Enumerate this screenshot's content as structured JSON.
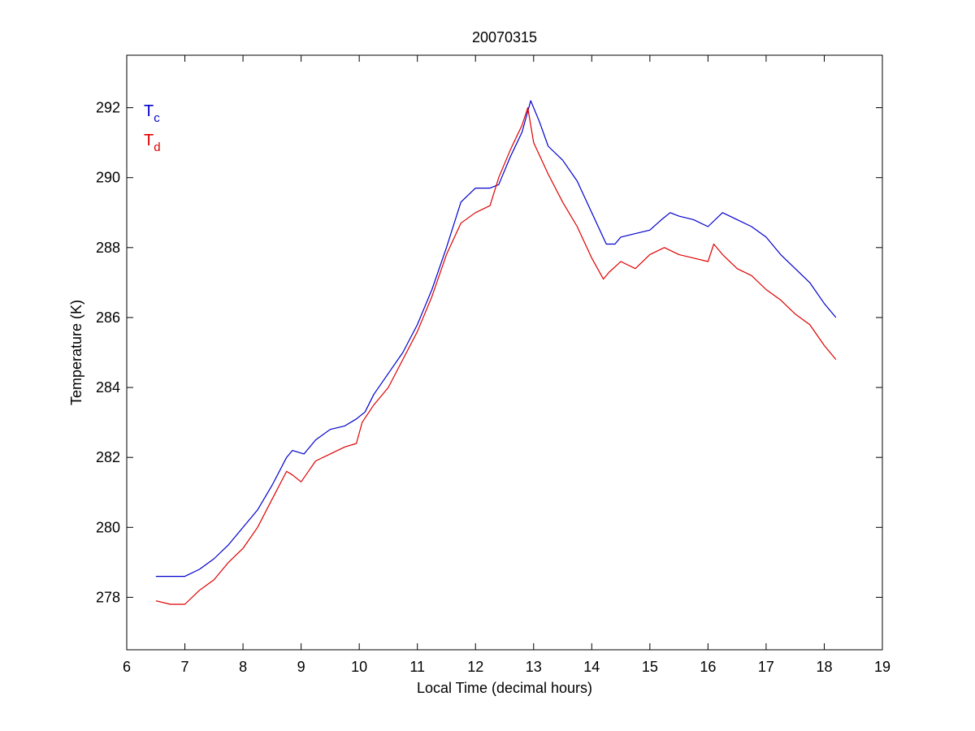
{
  "chart_data": {
    "type": "line",
    "title": "20070315",
    "xlabel": "Local Time (decimal hours)",
    "ylabel": "Temperature (K)",
    "xlim": [
      6,
      19
    ],
    "ylim": [
      276.5,
      293.5
    ],
    "xticks": [
      6,
      7,
      8,
      9,
      10,
      11,
      12,
      13,
      14,
      15,
      16,
      17,
      18,
      19
    ],
    "yticks": [
      278,
      280,
      282,
      284,
      286,
      288,
      290,
      292
    ],
    "grid": false,
    "legend": [
      {
        "main": "T",
        "sub": "c",
        "color": "#0000cc"
      },
      {
        "main": "T",
        "sub": "d",
        "color": "#dd0000"
      }
    ],
    "legend_position": "top-left",
    "series": [
      {
        "color": "#0000cc",
        "x": [
          6.5,
          6.75,
          7.0,
          7.25,
          7.5,
          7.75,
          8.0,
          8.25,
          8.5,
          8.75,
          8.85,
          9.05,
          9.25,
          9.5,
          9.75,
          9.95,
          10.1,
          10.25,
          10.5,
          10.75,
          11.0,
          11.25,
          11.5,
          11.75,
          12.0,
          12.25,
          12.4,
          12.6,
          12.8,
          12.95,
          13.1,
          13.25,
          13.5,
          13.75,
          14.0,
          14.25,
          14.4,
          14.5,
          14.75,
          15.0,
          15.2,
          15.35,
          15.5,
          15.75,
          16.0,
          16.25,
          16.5,
          16.75,
          17.0,
          17.25,
          17.5,
          17.75,
          18.0,
          18.2
        ],
        "y": [
          278.6,
          278.6,
          278.6,
          278.8,
          279.1,
          279.5,
          280.0,
          280.5,
          281.2,
          282.0,
          282.2,
          282.1,
          282.5,
          282.8,
          282.9,
          283.1,
          283.3,
          283.8,
          284.4,
          285.0,
          285.8,
          286.8,
          288.0,
          289.3,
          289.7,
          289.7,
          289.8,
          290.6,
          291.3,
          292.2,
          291.6,
          290.9,
          290.5,
          289.9,
          289.0,
          288.1,
          288.1,
          288.3,
          288.4,
          288.5,
          288.8,
          289.0,
          288.9,
          288.8,
          288.6,
          289.0,
          288.8,
          288.6,
          288.3,
          287.8,
          287.4,
          287.0,
          286.4,
          286.0
        ]
      },
      {
        "color": "#dd0000",
        "x": [
          6.5,
          6.75,
          7.0,
          7.25,
          7.5,
          7.75,
          8.0,
          8.25,
          8.5,
          8.75,
          8.85,
          9.0,
          9.25,
          9.5,
          9.75,
          9.95,
          10.05,
          10.25,
          10.5,
          10.75,
          11.0,
          11.25,
          11.5,
          11.75,
          12.0,
          12.25,
          12.4,
          12.6,
          12.8,
          12.9,
          13.0,
          13.25,
          13.5,
          13.75,
          14.0,
          14.2,
          14.3,
          14.5,
          14.75,
          15.0,
          15.25,
          15.5,
          15.75,
          16.0,
          16.1,
          16.25,
          16.5,
          16.75,
          17.0,
          17.25,
          17.5,
          17.75,
          18.0,
          18.2
        ],
        "y": [
          277.9,
          277.8,
          277.8,
          278.2,
          278.5,
          279.0,
          279.4,
          280.0,
          280.8,
          281.6,
          281.5,
          281.3,
          281.9,
          282.1,
          282.3,
          282.4,
          283.0,
          283.5,
          284.0,
          284.8,
          285.6,
          286.6,
          287.8,
          288.7,
          289.0,
          289.2,
          290.0,
          290.8,
          291.5,
          292.0,
          291.0,
          290.1,
          289.3,
          288.6,
          287.7,
          287.1,
          287.3,
          287.6,
          287.4,
          287.8,
          288.0,
          287.8,
          287.7,
          287.6,
          288.1,
          287.8,
          287.4,
          287.2,
          286.8,
          286.5,
          286.1,
          285.8,
          285.2,
          284.8
        ]
      }
    ]
  }
}
